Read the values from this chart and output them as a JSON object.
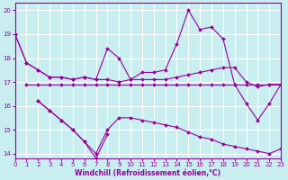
{
  "bg_color": "#c8eef0",
  "grid_color": "#ffffff",
  "line_color": "#990099",
  "xlabel": "Windchill (Refroidissement éolien,°C)",
  "xlim": [
    0,
    23
  ],
  "ylim": [
    13.8,
    20.3
  ],
  "yticks": [
    14,
    15,
    16,
    17,
    18,
    19,
    20
  ],
  "xticks": [
    0,
    1,
    2,
    3,
    4,
    5,
    6,
    7,
    8,
    9,
    10,
    11,
    12,
    13,
    14,
    15,
    16,
    17,
    18,
    19,
    20,
    21,
    22,
    23
  ],
  "s1_x": [
    0,
    1,
    2,
    3,
    4,
    5,
    6,
    7,
    8,
    9,
    10,
    11,
    12,
    13,
    14,
    15,
    16,
    17,
    18,
    19,
    20,
    21,
    22,
    23
  ],
  "s1_y": [
    19.0,
    17.8,
    17.5,
    17.2,
    17.2,
    17.1,
    17.2,
    17.1,
    18.4,
    18.0,
    17.1,
    17.4,
    17.4,
    17.5,
    18.6,
    20.0,
    19.2,
    19.3,
    18.8,
    16.9,
    16.1,
    15.4,
    16.1,
    16.9
  ],
  "s2_x": [
    0,
    1,
    2,
    3,
    4,
    5,
    6,
    7,
    8,
    9,
    10,
    11,
    12,
    13,
    14,
    15,
    16,
    17,
    18,
    19,
    20,
    21,
    22,
    23
  ],
  "s2_y": [
    19.0,
    17.8,
    17.5,
    17.2,
    17.2,
    17.1,
    17.2,
    17.1,
    17.1,
    17.0,
    17.1,
    17.1,
    17.1,
    17.1,
    17.2,
    17.3,
    17.4,
    17.5,
    17.6,
    17.6,
    17.0,
    16.8,
    16.9,
    16.9
  ],
  "s3_x": [
    1,
    2,
    3,
    4,
    5,
    6,
    7,
    8,
    9,
    10,
    11,
    12,
    13,
    14,
    15,
    16,
    17,
    18,
    19,
    20,
    21,
    22,
    23
  ],
  "s3_y": [
    16.9,
    16.9,
    16.9,
    16.9,
    16.9,
    16.9,
    16.9,
    16.9,
    16.9,
    16.9,
    16.9,
    16.9,
    16.9,
    16.9,
    16.9,
    16.9,
    16.9,
    16.9,
    16.9,
    16.9,
    16.9,
    16.9,
    16.9
  ],
  "s4_x": [
    2,
    3,
    4,
    5,
    6,
    7,
    8,
    9,
    10,
    11,
    12,
    13,
    14,
    15,
    16,
    17,
    18,
    19,
    20,
    21,
    22,
    23
  ],
  "s4_y": [
    16.2,
    15.8,
    15.4,
    15.0,
    14.5,
    14.0,
    15.0,
    15.5,
    15.5,
    15.4,
    15.3,
    15.2,
    15.1,
    14.9,
    14.7,
    14.6,
    14.4,
    14.3,
    14.2,
    14.1,
    14.0,
    14.2
  ],
  "s5_x": [
    2,
    3,
    4,
    5,
    6,
    7,
    8
  ],
  "s5_y": [
    16.2,
    15.8,
    15.4,
    15.0,
    14.5,
    13.8,
    14.8
  ]
}
